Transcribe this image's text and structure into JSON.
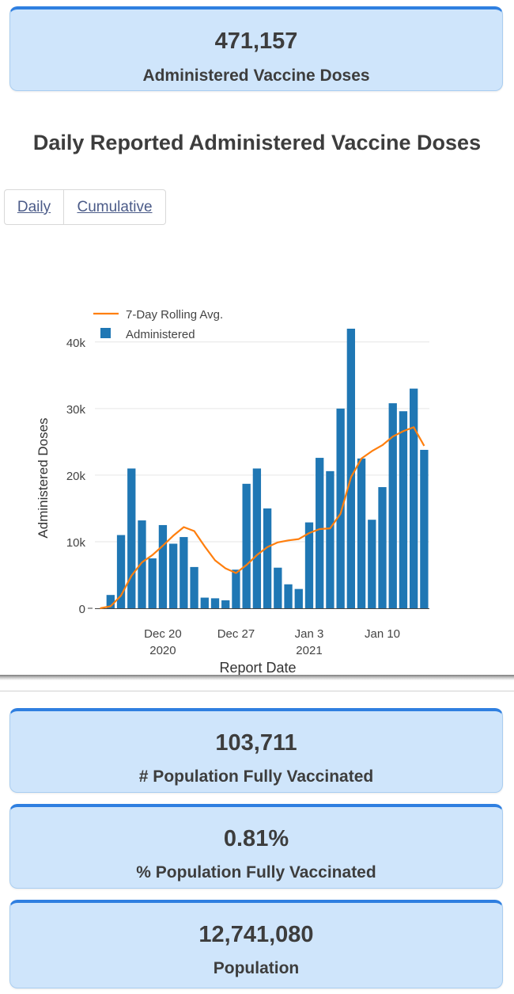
{
  "kpis": {
    "administered": {
      "value": "471,157",
      "label": "Administered Vaccine Doses"
    },
    "fully_vaccinated": {
      "value": "103,711",
      "label": "# Population Fully Vaccinated"
    },
    "pct_fully_vaccinated": {
      "value": "0.81%",
      "label": "% Population Fully Vaccinated"
    },
    "population": {
      "value": "12,741,080",
      "label": "Population"
    }
  },
  "section_title": "Daily Reported Administered Vaccine Doses",
  "toggle": {
    "daily": "Daily",
    "cumulative": "Cumulative"
  },
  "colors": {
    "bar": "#1f77b4",
    "line": "#ff7f0e",
    "card_bg": "#cfe5fb",
    "card_border": "#2f7fe0"
  },
  "chart_data": {
    "type": "bar",
    "xlabel": "Report Date",
    "ylabel": "Administered Doses",
    "ylim": [
      0,
      42000
    ],
    "yticks": [
      0,
      10000,
      20000,
      30000,
      40000
    ],
    "ytick_labels": [
      "0",
      "10k",
      "20k",
      "30k",
      "40k"
    ],
    "x_start": "2020-12-14",
    "xticks": [
      {
        "date": "2020-12-20",
        "lines": [
          "Dec 20",
          "2020"
        ]
      },
      {
        "date": "2020-12-27",
        "lines": [
          "Dec 27"
        ]
      },
      {
        "date": "2021-01-03",
        "lines": [
          "Jan 3",
          "2021"
        ]
      },
      {
        "date": "2021-01-10",
        "lines": [
          "Jan 10"
        ]
      }
    ],
    "legend_position": "top-left",
    "series": [
      {
        "name": "Administered",
        "kind": "bar",
        "values": [
          0,
          2000,
          11000,
          21000,
          13200,
          7500,
          12500,
          9700,
          10700,
          6200,
          1600,
          1500,
          1200,
          5800,
          18700,
          21000,
          15000,
          6100,
          3600,
          2900,
          12900,
          22600,
          20600,
          30000,
          42000,
          22500,
          13300,
          18200,
          30800,
          29600,
          33000,
          23800
        ]
      },
      {
        "name": "7-Day Rolling Avg.",
        "kind": "line",
        "values": [
          0,
          300,
          1900,
          4900,
          6900,
          8000,
          9400,
          10900,
          12200,
          11600,
          9300,
          7200,
          6000,
          5300,
          6500,
          8000,
          9200,
          9900,
          10200,
          10400,
          11300,
          11900,
          12000,
          14200,
          19700,
          22500,
          23600,
          24500,
          25800,
          26600,
          27200,
          24400
        ]
      }
    ]
  }
}
